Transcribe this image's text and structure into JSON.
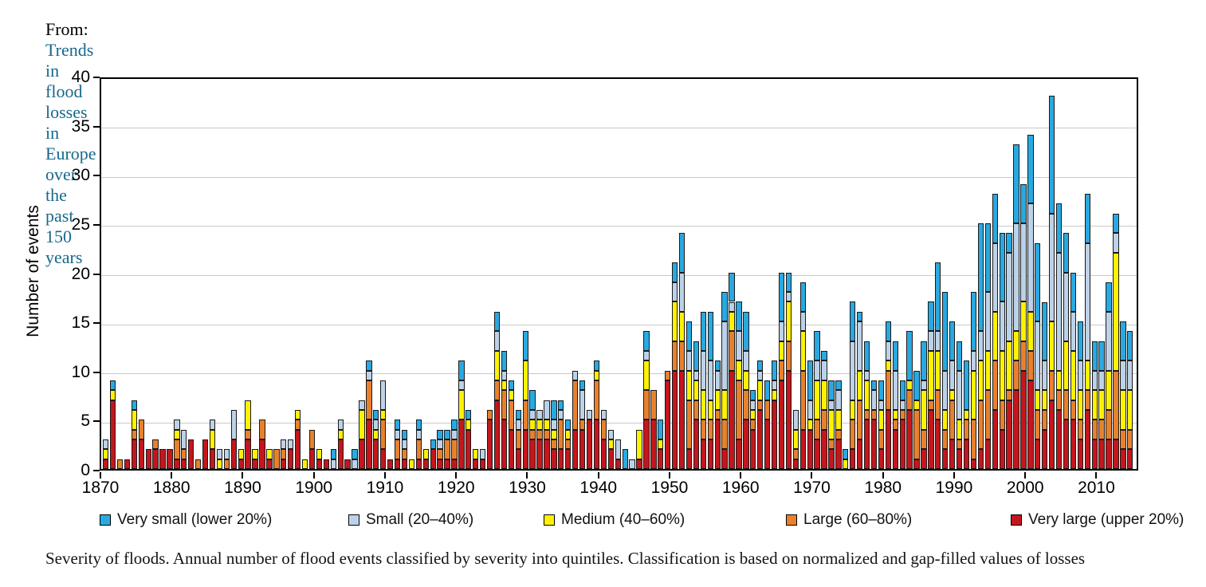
{
  "header": {
    "prefix": "From:",
    "link_text": "Trends in flood losses in Europe over the past 150 years"
  },
  "caption": "Severity of floods. Annual number of flood events classified by severity into quintiles. Classification is based on normalized and gap-filled values of losses",
  "legend": {
    "items": [
      {
        "label": "Very small (lower 20%)",
        "color": "#29a9e1"
      },
      {
        "label": "Small (20–40%)",
        "color": "#bcd2e8"
      },
      {
        "label": "Medium (40–60%)",
        "color": "#fff200"
      },
      {
        "label": "Large (60–80%)",
        "color": "#e8812d"
      },
      {
        "label": "Very large (upper 20%)",
        "color": "#c4161c"
      }
    ]
  },
  "chart_data": {
    "type": "bar",
    "stacked": true,
    "title": "",
    "xlabel": "",
    "ylabel": "Number of events",
    "ylim": [
      0,
      40
    ],
    "y_ticks": [
      0,
      5,
      10,
      15,
      20,
      25,
      30,
      35,
      40
    ],
    "x_ticks": [
      1870,
      1880,
      1890,
      1900,
      1910,
      1920,
      1930,
      1940,
      1950,
      1960,
      1970,
      1980,
      1990,
      2000,
      2010
    ],
    "grid": "horizontal",
    "legend_position": "bottom",
    "years": [
      1871,
      1872,
      1873,
      1874,
      1875,
      1876,
      1877,
      1878,
      1879,
      1880,
      1881,
      1882,
      1883,
      1884,
      1885,
      1886,
      1887,
      1888,
      1889,
      1890,
      1891,
      1892,
      1893,
      1894,
      1895,
      1896,
      1897,
      1898,
      1899,
      1900,
      1901,
      1902,
      1903,
      1904,
      1905,
      1906,
      1907,
      1908,
      1909,
      1910,
      1911,
      1912,
      1913,
      1914,
      1915,
      1916,
      1917,
      1918,
      1919,
      1920,
      1921,
      1922,
      1923,
      1924,
      1925,
      1926,
      1927,
      1928,
      1929,
      1930,
      1931,
      1932,
      1933,
      1934,
      1935,
      1936,
      1937,
      1938,
      1939,
      1940,
      1941,
      1942,
      1943,
      1944,
      1945,
      1946,
      1947,
      1948,
      1949,
      1950,
      1951,
      1952,
      1953,
      1954,
      1955,
      1956,
      1957,
      1958,
      1959,
      1960,
      1961,
      1962,
      1963,
      1964,
      1965,
      1966,
      1967,
      1968,
      1969,
      1970,
      1971,
      1972,
      1973,
      1974,
      1975,
      1976,
      1977,
      1978,
      1979,
      1980,
      1981,
      1982,
      1983,
      1984,
      1985,
      1986,
      1987,
      1988,
      1989,
      1990,
      1991,
      1992,
      1993,
      1994,
      1995,
      1996,
      1997,
      1998,
      1999,
      2000,
      2001,
      2002,
      2003,
      2004,
      2005,
      2006,
      2007,
      2008,
      2009,
      2010,
      2011,
      2012,
      2013,
      2014,
      2015
    ],
    "series": [
      {
        "name": "Very large (upper 20%)",
        "color": "#c4161c",
        "values": [
          1,
          7,
          0,
          1,
          3,
          3,
          2,
          2,
          2,
          2,
          1,
          1,
          3,
          0,
          3,
          2,
          0,
          0,
          3,
          1,
          3,
          1,
          3,
          1,
          0,
          1,
          2,
          4,
          0,
          2,
          1,
          1,
          0,
          3,
          1,
          0,
          3,
          5,
          3,
          2,
          1,
          1,
          1,
          0,
          1,
          1,
          2,
          1,
          1,
          1,
          5,
          4,
          1,
          1,
          5,
          7,
          5,
          4,
          2,
          4,
          3,
          3,
          3,
          2,
          2,
          2,
          4,
          4,
          5,
          5,
          3,
          2,
          1,
          0,
          0,
          1,
          5,
          5,
          2,
          9,
          10,
          10,
          2,
          5,
          3,
          3,
          5,
          2,
          10,
          3,
          5,
          4,
          6,
          5,
          7,
          9,
          10,
          1,
          4,
          4,
          3,
          4,
          2,
          3,
          0,
          2,
          3,
          5,
          5,
          2,
          6,
          4,
          5,
          6,
          1,
          2,
          6,
          5,
          2,
          3,
          2,
          3,
          1,
          2,
          3,
          6,
          4,
          7,
          8,
          10,
          9,
          3,
          4,
          7,
          6,
          5,
          5,
          3,
          6,
          3,
          3,
          3,
          3,
          2,
          2
        ]
      },
      {
        "name": "Large (60–80%)",
        "color": "#e8812d",
        "values": [
          0,
          0,
          1,
          0,
          1,
          2,
          0,
          1,
          0,
          0,
          2,
          1,
          0,
          1,
          0,
          0,
          0,
          1,
          0,
          0,
          1,
          0,
          2,
          0,
          2,
          1,
          0,
          1,
          0,
          2,
          0,
          0,
          0,
          0,
          0,
          0,
          0,
          4,
          0,
          3,
          0,
          2,
          1,
          0,
          2,
          0,
          0,
          1,
          2,
          2,
          0,
          0,
          0,
          0,
          1,
          2,
          3,
          3,
          2,
          3,
          1,
          1,
          1,
          1,
          3,
          1,
          5,
          1,
          0,
          4,
          2,
          0,
          0,
          0,
          0,
          0,
          3,
          3,
          0,
          1,
          3,
          3,
          5,
          2,
          2,
          2,
          1,
          3,
          4,
          6,
          3,
          1,
          1,
          2,
          0,
          2,
          3,
          1,
          6,
          0,
          2,
          2,
          1,
          1,
          0,
          3,
          4,
          1,
          1,
          2,
          4,
          1,
          1,
          2,
          5,
          2,
          1,
          3,
          2,
          4,
          1,
          2,
          4,
          5,
          5,
          5,
          3,
          1,
          3,
          3,
          3,
          3,
          2,
          3,
          2,
          3,
          2,
          2,
          2,
          2,
          2,
          3,
          7,
          2,
          2
        ]
      },
      {
        "name": "Medium (40–60%)",
        "color": "#fff200",
        "values": [
          1,
          1,
          0,
          0,
          2,
          0,
          0,
          0,
          0,
          0,
          1,
          0,
          0,
          0,
          0,
          2,
          1,
          0,
          0,
          1,
          3,
          1,
          0,
          1,
          0,
          0,
          0,
          1,
          1,
          0,
          1,
          0,
          0,
          1,
          0,
          0,
          3,
          0,
          1,
          1,
          0,
          0,
          0,
          1,
          0,
          1,
          0,
          0,
          0,
          0,
          3,
          1,
          1,
          0,
          0,
          3,
          1,
          1,
          0,
          4,
          1,
          1,
          1,
          1,
          0,
          1,
          0,
          0,
          0,
          1,
          0,
          1,
          0,
          0,
          0,
          3,
          3,
          0,
          1,
          0,
          4,
          3,
          3,
          2,
          3,
          2,
          2,
          3,
          2,
          2,
          2,
          1,
          2,
          0,
          1,
          2,
          4,
          2,
          4,
          1,
          4,
          3,
          3,
          2,
          1,
          2,
          3,
          3,
          0,
          2,
          1,
          1,
          0,
          1,
          1,
          4,
          5,
          4,
          2,
          1,
          2,
          1,
          5,
          4,
          4,
          5,
          5,
          5,
          3,
          4,
          4,
          2,
          2,
          5,
          2,
          5,
          5,
          3,
          3,
          3,
          3,
          4,
          12,
          4,
          4
        ]
      },
      {
        "name": "Small (20–40%)",
        "color": "#bcd2e8",
        "values": [
          1,
          0,
          0,
          0,
          0,
          0,
          0,
          0,
          0,
          0,
          1,
          2,
          0,
          0,
          0,
          1,
          1,
          1,
          3,
          0,
          0,
          0,
          0,
          0,
          0,
          1,
          1,
          0,
          0,
          0,
          0,
          0,
          1,
          1,
          0,
          1,
          1,
          1,
          1,
          3,
          0,
          1,
          1,
          0,
          1,
          0,
          0,
          1,
          0,
          1,
          1,
          0,
          0,
          1,
          0,
          2,
          1,
          0,
          1,
          0,
          1,
          1,
          2,
          1,
          1,
          0,
          1,
          3,
          1,
          0,
          1,
          1,
          2,
          0,
          1,
          0,
          1,
          0,
          0,
          0,
          2,
          4,
          2,
          1,
          4,
          4,
          2,
          7,
          1,
          3,
          2,
          1,
          1,
          0,
          1,
          2,
          1,
          2,
          2,
          2,
          2,
          2,
          1,
          2,
          0,
          6,
          5,
          1,
          2,
          1,
          2,
          4,
          1,
          0,
          0,
          1,
          2,
          2,
          4,
          3,
          5,
          0,
          2,
          3,
          6,
          7,
          5,
          9,
          11,
          8,
          11,
          7,
          3,
          11,
          12,
          7,
          4,
          3,
          12,
          2,
          2,
          6,
          2,
          3,
          3
        ]
      },
      {
        "name": "Very small (lower 20%)",
        "color": "#29a9e1",
        "values": [
          0,
          1,
          0,
          0,
          1,
          0,
          0,
          0,
          0,
          0,
          0,
          0,
          0,
          0,
          0,
          0,
          0,
          0,
          0,
          0,
          0,
          0,
          0,
          0,
          0,
          0,
          0,
          0,
          0,
          0,
          0,
          0,
          1,
          0,
          0,
          1,
          0,
          1,
          1,
          0,
          0,
          1,
          1,
          0,
          1,
          0,
          1,
          1,
          1,
          1,
          2,
          1,
          0,
          0,
          0,
          2,
          2,
          1,
          1,
          3,
          2,
          0,
          0,
          2,
          1,
          1,
          0,
          1,
          0,
          1,
          0,
          0,
          0,
          2,
          0,
          0,
          2,
          0,
          2,
          0,
          2,
          4,
          3,
          3,
          4,
          5,
          1,
          3,
          3,
          3,
          4,
          1,
          1,
          2,
          2,
          5,
          2,
          0,
          3,
          4,
          3,
          1,
          2,
          1,
          1,
          4,
          1,
          3,
          1,
          2,
          2,
          3,
          2,
          5,
          3,
          4,
          3,
          7,
          8,
          4,
          3,
          5,
          6,
          11,
          7,
          5,
          7,
          2,
          8,
          4,
          7,
          8,
          6,
          12,
          5,
          4,
          4,
          4,
          5,
          3,
          3,
          3,
          2,
          4,
          3
        ]
      }
    ]
  }
}
